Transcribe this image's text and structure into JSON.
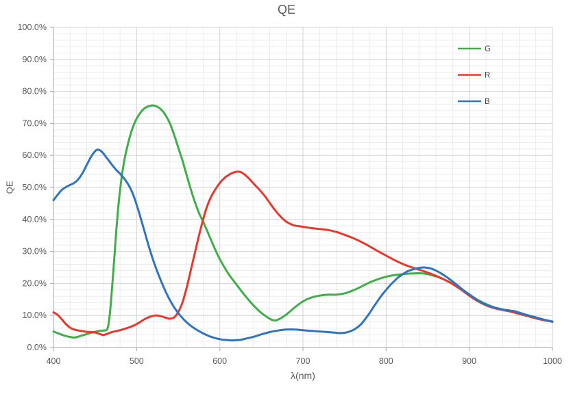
{
  "chart_data": {
    "type": "line",
    "title": "QE",
    "xlabel": "λ(nm)",
    "ylabel": "QE",
    "xlim": [
      400,
      1000
    ],
    "ylim": [
      0,
      100
    ],
    "x_major_step": 100,
    "x_minor_step": 20,
    "y_major_step": 10,
    "y_minor_step": 2,
    "x_tick_labels": [
      "400",
      "500",
      "600",
      "700",
      "800",
      "900",
      "1000"
    ],
    "y_tick_labels": [
      "0.0%",
      "10.0%",
      "20.0%",
      "30.0%",
      "40.0%",
      "50.0%",
      "60.0%",
      "70.0%",
      "80.0%",
      "90.0%",
      "100.0%"
    ],
    "grid": true,
    "legend_position": "top-right-inside",
    "colors": {
      "axis_text": "#595959",
      "legend_text": "#404040",
      "grid_minor": "#ececec",
      "grid_major": "#d2d2d2",
      "axis_line": "#b3b3b3"
    },
    "series": [
      {
        "name": "G",
        "color": "#3fae49",
        "points": [
          [
            400,
            5.0
          ],
          [
            405,
            4.5
          ],
          [
            410,
            4.0
          ],
          [
            415,
            3.6
          ],
          [
            420,
            3.3
          ],
          [
            425,
            3.1
          ],
          [
            430,
            3.4
          ],
          [
            435,
            3.8
          ],
          [
            440,
            4.2
          ],
          [
            445,
            4.6
          ],
          [
            450,
            4.9
          ],
          [
            455,
            5.2
          ],
          [
            460,
            5.3
          ],
          [
            464,
            5.5
          ],
          [
            466,
            7.0
          ],
          [
            468,
            11.0
          ],
          [
            470,
            17.0
          ],
          [
            472,
            24.0
          ],
          [
            474,
            31.0
          ],
          [
            476,
            38.0
          ],
          [
            478,
            44.0
          ],
          [
            480,
            49.0
          ],
          [
            483,
            55.0
          ],
          [
            486,
            59.5
          ],
          [
            490,
            64.0
          ],
          [
            495,
            68.5
          ],
          [
            500,
            71.5
          ],
          [
            505,
            73.5
          ],
          [
            510,
            74.8
          ],
          [
            515,
            75.4
          ],
          [
            520,
            75.6
          ],
          [
            525,
            75.2
          ],
          [
            530,
            74.2
          ],
          [
            535,
            72.5
          ],
          [
            540,
            70.0
          ],
          [
            545,
            66.5
          ],
          [
            550,
            62.5
          ],
          [
            555,
            58.5
          ],
          [
            560,
            54.0
          ],
          [
            565,
            49.5
          ],
          [
            570,
            45.5
          ],
          [
            575,
            42.0
          ],
          [
            580,
            39.3
          ],
          [
            585,
            36.3
          ],
          [
            590,
            33.3
          ],
          [
            595,
            30.3
          ],
          [
            600,
            27.6
          ],
          [
            610,
            23.2
          ],
          [
            620,
            19.7
          ],
          [
            630,
            16.3
          ],
          [
            640,
            13.3
          ],
          [
            650,
            10.8
          ],
          [
            660,
            9.0
          ],
          [
            665,
            8.5
          ],
          [
            670,
            8.7
          ],
          [
            680,
            10.3
          ],
          [
            690,
            12.5
          ],
          [
            700,
            14.4
          ],
          [
            710,
            15.6
          ],
          [
            720,
            16.2
          ],
          [
            730,
            16.5
          ],
          [
            740,
            16.5
          ],
          [
            750,
            16.9
          ],
          [
            760,
            17.8
          ],
          [
            770,
            19.0
          ],
          [
            780,
            20.3
          ],
          [
            790,
            21.3
          ],
          [
            800,
            22.1
          ],
          [
            810,
            22.6
          ],
          [
            820,
            22.9
          ],
          [
            830,
            23.1
          ],
          [
            840,
            23.2
          ],
          [
            850,
            22.9
          ],
          [
            860,
            22.2
          ],
          [
            870,
            21.2
          ],
          [
            880,
            19.9
          ],
          [
            890,
            18.2
          ],
          [
            900,
            16.4
          ],
          [
            910,
            14.9
          ],
          [
            920,
            13.6
          ],
          [
            930,
            12.5
          ],
          [
            940,
            11.8
          ],
          [
            950,
            11.3
          ],
          [
            960,
            10.6
          ],
          [
            970,
            9.9
          ],
          [
            980,
            9.2
          ],
          [
            990,
            8.6
          ],
          [
            1000,
            8.0
          ]
        ]
      },
      {
        "name": "R",
        "color": "#e8382d",
        "points": [
          [
            400,
            11.0
          ],
          [
            405,
            10.2
          ],
          [
            410,
            8.8
          ],
          [
            415,
            7.3
          ],
          [
            420,
            6.2
          ],
          [
            425,
            5.6
          ],
          [
            430,
            5.3
          ],
          [
            435,
            5.1
          ],
          [
            440,
            4.9
          ],
          [
            445,
            4.8
          ],
          [
            450,
            4.7
          ],
          [
            455,
            4.3
          ],
          [
            460,
            3.9
          ],
          [
            465,
            4.3
          ],
          [
            470,
            4.8
          ],
          [
            475,
            5.1
          ],
          [
            480,
            5.4
          ],
          [
            485,
            5.8
          ],
          [
            490,
            6.2
          ],
          [
            495,
            6.7
          ],
          [
            500,
            7.3
          ],
          [
            505,
            8.1
          ],
          [
            510,
            8.9
          ],
          [
            515,
            9.5
          ],
          [
            520,
            9.9
          ],
          [
            525,
            10.0
          ],
          [
            530,
            9.7
          ],
          [
            535,
            9.3
          ],
          [
            540,
            9.0
          ],
          [
            545,
            9.4
          ],
          [
            550,
            11.0
          ],
          [
            555,
            14.0
          ],
          [
            560,
            18.5
          ],
          [
            565,
            24.0
          ],
          [
            570,
            29.5
          ],
          [
            575,
            35.0
          ],
          [
            580,
            40.0
          ],
          [
            585,
            44.3
          ],
          [
            590,
            47.3
          ],
          [
            595,
            49.5
          ],
          [
            600,
            51.4
          ],
          [
            605,
            52.8
          ],
          [
            610,
            53.8
          ],
          [
            615,
            54.5
          ],
          [
            620,
            54.9
          ],
          [
            625,
            54.8
          ],
          [
            630,
            54.0
          ],
          [
            635,
            52.8
          ],
          [
            640,
            51.4
          ],
          [
            645,
            50.0
          ],
          [
            650,
            48.6
          ],
          [
            655,
            47.0
          ],
          [
            660,
            45.2
          ],
          [
            665,
            43.4
          ],
          [
            670,
            41.8
          ],
          [
            675,
            40.4
          ],
          [
            680,
            39.3
          ],
          [
            685,
            38.6
          ],
          [
            690,
            38.1
          ],
          [
            700,
            37.7
          ],
          [
            710,
            37.3
          ],
          [
            720,
            37.0
          ],
          [
            730,
            36.7
          ],
          [
            740,
            36.1
          ],
          [
            750,
            35.2
          ],
          [
            760,
            34.2
          ],
          [
            770,
            33.0
          ],
          [
            780,
            31.6
          ],
          [
            790,
            30.1
          ],
          [
            800,
            28.7
          ],
          [
            810,
            27.3
          ],
          [
            820,
            26.1
          ],
          [
            830,
            25.1
          ],
          [
            840,
            24.3
          ],
          [
            850,
            23.4
          ],
          [
            860,
            22.4
          ],
          [
            870,
            21.2
          ],
          [
            880,
            19.8
          ],
          [
            890,
            18.1
          ],
          [
            900,
            16.2
          ],
          [
            910,
            14.5
          ],
          [
            920,
            13.2
          ],
          [
            930,
            12.3
          ],
          [
            940,
            11.7
          ],
          [
            950,
            11.2
          ],
          [
            960,
            10.5
          ],
          [
            970,
            9.8
          ],
          [
            980,
            9.1
          ],
          [
            990,
            8.5
          ],
          [
            1000,
            8.1
          ]
        ]
      },
      {
        "name": "B",
        "color": "#2e74c0",
        "points": [
          [
            400,
            46.0
          ],
          [
            405,
            47.7
          ],
          [
            410,
            49.2
          ],
          [
            415,
            50.1
          ],
          [
            420,
            50.8
          ],
          [
            425,
            51.4
          ],
          [
            430,
            52.6
          ],
          [
            435,
            54.5
          ],
          [
            440,
            57.0
          ],
          [
            445,
            59.5
          ],
          [
            450,
            61.3
          ],
          [
            453,
            61.8
          ],
          [
            457,
            61.4
          ],
          [
            460,
            60.6
          ],
          [
            465,
            58.9
          ],
          [
            470,
            57.2
          ],
          [
            475,
            55.6
          ],
          [
            480,
            54.3
          ],
          [
            485,
            52.8
          ],
          [
            490,
            50.9
          ],
          [
            495,
            48.3
          ],
          [
            500,
            44.6
          ],
          [
            505,
            40.3
          ],
          [
            510,
            35.8
          ],
          [
            515,
            31.3
          ],
          [
            520,
            27.2
          ],
          [
            525,
            23.6
          ],
          [
            530,
            20.4
          ],
          [
            535,
            17.4
          ],
          [
            540,
            14.8
          ],
          [
            545,
            12.6
          ],
          [
            550,
            10.8
          ],
          [
            555,
            9.2
          ],
          [
            560,
            7.9
          ],
          [
            565,
            6.8
          ],
          [
            570,
            5.9
          ],
          [
            575,
            5.1
          ],
          [
            580,
            4.4
          ],
          [
            585,
            3.8
          ],
          [
            590,
            3.3
          ],
          [
            595,
            2.9
          ],
          [
            600,
            2.6
          ],
          [
            605,
            2.4
          ],
          [
            610,
            2.3
          ],
          [
            615,
            2.2
          ],
          [
            620,
            2.3
          ],
          [
            625,
            2.4
          ],
          [
            630,
            2.7
          ],
          [
            640,
            3.3
          ],
          [
            650,
            4.1
          ],
          [
            660,
            4.8
          ],
          [
            670,
            5.3
          ],
          [
            680,
            5.6
          ],
          [
            690,
            5.6
          ],
          [
            700,
            5.4
          ],
          [
            710,
            5.2
          ],
          [
            720,
            5.0
          ],
          [
            730,
            4.8
          ],
          [
            740,
            4.6
          ],
          [
            745,
            4.5
          ],
          [
            750,
            4.6
          ],
          [
            755,
            4.9
          ],
          [
            760,
            5.4
          ],
          [
            765,
            6.2
          ],
          [
            770,
            7.3
          ],
          [
            775,
            8.9
          ],
          [
            780,
            10.7
          ],
          [
            785,
            12.7
          ],
          [
            790,
            14.6
          ],
          [
            795,
            16.4
          ],
          [
            800,
            18.0
          ],
          [
            805,
            19.5
          ],
          [
            810,
            20.8
          ],
          [
            815,
            22.0
          ],
          [
            820,
            22.9
          ],
          [
            825,
            23.7
          ],
          [
            830,
            24.2
          ],
          [
            835,
            24.6
          ],
          [
            840,
            24.9
          ],
          [
            845,
            25.0
          ],
          [
            850,
            24.9
          ],
          [
            855,
            24.6
          ],
          [
            860,
            24.0
          ],
          [
            865,
            23.3
          ],
          [
            870,
            22.5
          ],
          [
            875,
            21.6
          ],
          [
            880,
            20.6
          ],
          [
            885,
            19.6
          ],
          [
            890,
            18.5
          ],
          [
            895,
            17.5
          ],
          [
            900,
            16.6
          ],
          [
            910,
            14.8
          ],
          [
            920,
            13.4
          ],
          [
            930,
            12.5
          ],
          [
            940,
            11.9
          ],
          [
            950,
            11.5
          ],
          [
            955,
            11.3
          ],
          [
            960,
            10.9
          ],
          [
            970,
            10.1
          ],
          [
            980,
            9.4
          ],
          [
            990,
            8.7
          ],
          [
            1000,
            8.1
          ]
        ]
      }
    ]
  }
}
